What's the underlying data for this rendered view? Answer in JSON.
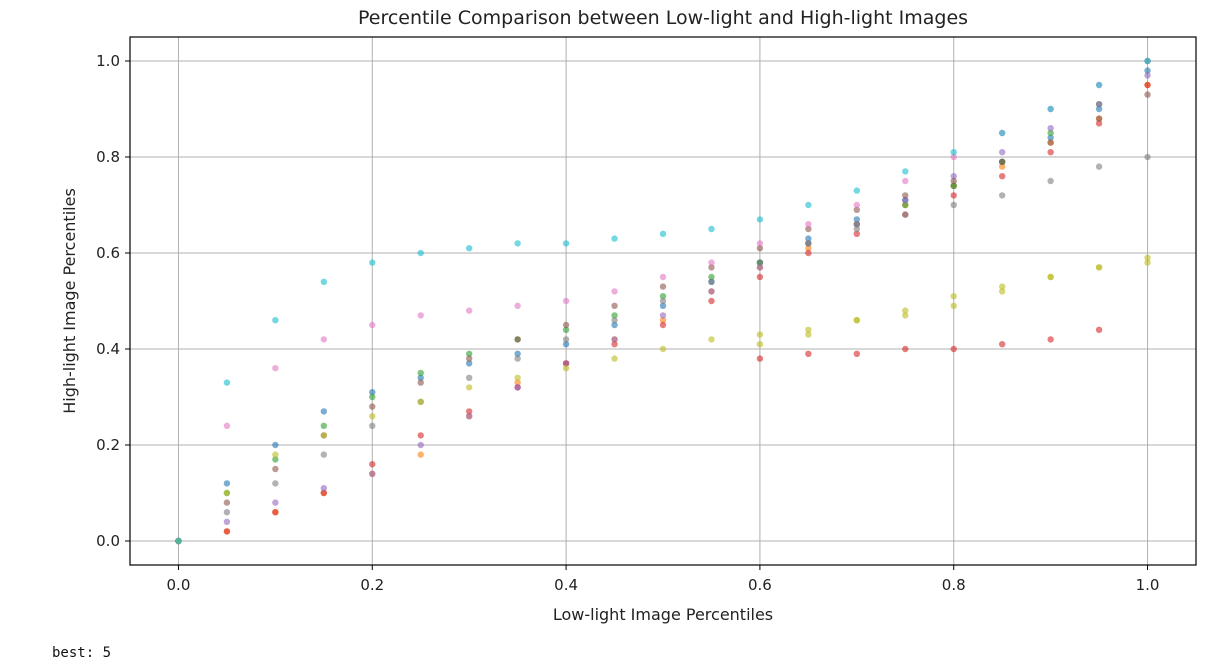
{
  "output": {
    "console_line": "best: 5"
  },
  "chart_data": {
    "type": "scatter",
    "title": "Percentile Comparison between Low-light and High-light Images",
    "xlabel": "Low-light Image Percentiles",
    "ylabel": "High-light Image Percentiles",
    "xlim": [
      -0.05,
      1.05
    ],
    "ylim": [
      -0.05,
      1.05
    ],
    "x_ticks": [
      0.0,
      0.2,
      0.4,
      0.6,
      0.8,
      1.0
    ],
    "x_tick_labels": [
      "0.0",
      "0.2",
      "0.4",
      "0.6",
      "0.8",
      "1.0"
    ],
    "y_ticks": [
      0.0,
      0.2,
      0.4,
      0.6,
      0.8,
      1.0
    ],
    "y_tick_labels": [
      "0.0",
      "0.2",
      "0.4",
      "0.6",
      "0.8",
      "1.0"
    ],
    "grid": true,
    "marker_opacity": 0.6,
    "palette": [
      "#1f77b4",
      "#ff7f0e",
      "#2ca02c",
      "#d62728",
      "#9467bd",
      "#8c564b",
      "#e377c2",
      "#7f7f7f",
      "#bcbd22",
      "#17becf"
    ],
    "series": [
      {
        "color": "#1f77b4",
        "x": [
          0.0,
          0.05,
          0.1,
          0.15,
          0.2,
          0.25,
          0.3,
          0.35,
          0.4,
          0.45,
          0.5,
          0.55,
          0.6,
          0.65,
          0.7,
          0.75,
          0.8,
          0.85,
          0.9,
          0.95,
          1.0
        ],
        "y": [
          0.0,
          0.12,
          0.2,
          0.27,
          0.31,
          0.34,
          0.37,
          0.39,
          0.41,
          0.45,
          0.49,
          0.54,
          0.58,
          0.63,
          0.67,
          0.71,
          0.74,
          0.79,
          0.84,
          0.9,
          0.98
        ]
      },
      {
        "color": "#ff7f0e",
        "x": [
          0.0,
          0.05,
          0.1,
          0.15,
          0.2,
          0.25,
          0.3,
          0.35,
          0.4,
          0.45,
          0.5,
          0.55,
          0.6,
          0.65,
          0.7,
          0.75,
          0.8,
          0.85,
          0.9,
          0.95,
          1.0
        ],
        "y": [
          0.0,
          0.02,
          0.06,
          0.1,
          0.14,
          0.18,
          0.26,
          0.33,
          0.37,
          0.42,
          0.46,
          0.52,
          0.57,
          0.61,
          0.66,
          0.7,
          0.74,
          0.78,
          0.83,
          0.88,
          0.95
        ]
      },
      {
        "color": "#2ca02c",
        "x": [
          0.0,
          0.05,
          0.1,
          0.15,
          0.2,
          0.25,
          0.3,
          0.35,
          0.4,
          0.45,
          0.5,
          0.55,
          0.6,
          0.65,
          0.7,
          0.75,
          0.8,
          0.85,
          0.9,
          0.95,
          1.0
        ],
        "y": [
          0.0,
          0.1,
          0.17,
          0.24,
          0.3,
          0.35,
          0.39,
          0.42,
          0.44,
          0.47,
          0.51,
          0.55,
          0.58,
          0.62,
          0.66,
          0.7,
          0.74,
          0.79,
          0.85,
          0.91,
          1.0
        ]
      },
      {
        "color": "#d62728",
        "x": [
          0.0,
          0.05,
          0.1,
          0.15,
          0.2,
          0.25,
          0.3,
          0.35,
          0.4,
          0.45,
          0.5,
          0.55,
          0.6,
          0.65,
          0.7,
          0.75,
          0.8,
          0.85,
          0.9,
          0.95,
          1.0
        ],
        "y": [
          0.0,
          0.02,
          0.06,
          0.1,
          0.16,
          0.22,
          0.27,
          0.32,
          0.37,
          0.41,
          0.45,
          0.5,
          0.55,
          0.6,
          0.64,
          0.68,
          0.72,
          0.76,
          0.81,
          0.87,
          0.95
        ]
      },
      {
        "color": "#9467bd",
        "x": [
          0.0,
          0.05,
          0.1,
          0.15,
          0.2,
          0.25,
          0.3,
          0.35,
          0.4,
          0.45,
          0.5,
          0.55,
          0.6,
          0.65,
          0.7,
          0.75,
          0.8,
          0.85,
          0.9,
          0.95,
          1.0
        ],
        "y": [
          0.0,
          0.04,
          0.08,
          0.11,
          0.14,
          0.2,
          0.26,
          0.32,
          0.37,
          0.42,
          0.47,
          0.52,
          0.57,
          0.62,
          0.66,
          0.71,
          0.76,
          0.81,
          0.86,
          0.91,
          0.97
        ]
      },
      {
        "color": "#8c564b",
        "x": [
          0.0,
          0.05,
          0.1,
          0.15,
          0.2,
          0.25,
          0.3,
          0.35,
          0.4,
          0.45,
          0.5,
          0.55,
          0.6,
          0.65,
          0.7,
          0.75,
          0.8,
          0.85,
          0.9,
          0.95,
          1.0
        ],
        "y": [
          0.0,
          0.08,
          0.15,
          0.22,
          0.28,
          0.33,
          0.38,
          0.42,
          0.45,
          0.49,
          0.53,
          0.57,
          0.61,
          0.65,
          0.69,
          0.72,
          0.75,
          0.79,
          0.83,
          0.88,
          0.93
        ]
      },
      {
        "color": "#e377c2",
        "x": [
          0.0,
          0.05,
          0.1,
          0.15,
          0.2,
          0.25,
          0.3,
          0.35,
          0.4,
          0.45,
          0.5,
          0.55,
          0.6,
          0.65,
          0.7,
          0.75,
          0.8,
          0.85,
          0.9,
          0.95,
          1.0
        ],
        "y": [
          0.0,
          0.24,
          0.36,
          0.42,
          0.45,
          0.47,
          0.48,
          0.49,
          0.5,
          0.52,
          0.55,
          0.58,
          0.62,
          0.66,
          0.7,
          0.75,
          0.8,
          0.85,
          0.9,
          0.95,
          1.0
        ]
      },
      {
        "color": "#7f7f7f",
        "x": [
          0.0,
          0.05,
          0.1,
          0.15,
          0.2,
          0.25,
          0.3,
          0.35,
          0.4,
          0.45,
          0.5,
          0.55,
          0.6,
          0.65,
          0.7,
          0.75,
          0.8,
          0.85,
          0.9,
          0.95,
          1.0
        ],
        "y": [
          0.0,
          0.06,
          0.12,
          0.18,
          0.24,
          0.29,
          0.34,
          0.38,
          0.42,
          0.46,
          0.5,
          0.54,
          0.58,
          0.62,
          0.65,
          0.68,
          0.7,
          0.72,
          0.75,
          0.78,
          0.8
        ]
      },
      {
        "color": "#bcbd22",
        "x": [
          0.0,
          0.05,
          0.1,
          0.15,
          0.2,
          0.25,
          0.3,
          0.35,
          0.4,
          0.45,
          0.5,
          0.55,
          0.6,
          0.65,
          0.7,
          0.75,
          0.8,
          0.85,
          0.9,
          0.95,
          1.0
        ],
        "y": [
          0.0,
          0.1,
          0.18,
          0.22,
          0.26,
          0.29,
          0.32,
          0.34,
          0.36,
          0.38,
          0.4,
          0.42,
          0.43,
          0.44,
          0.46,
          0.47,
          0.49,
          0.52,
          0.55,
          0.57,
          0.59
        ]
      },
      {
        "color": "#17becf",
        "x": [
          0.0,
          0.05,
          0.1,
          0.15,
          0.2,
          0.25,
          0.3,
          0.35,
          0.4,
          0.45,
          0.5,
          0.55,
          0.6,
          0.65,
          0.7,
          0.75,
          0.8,
          0.85,
          0.9,
          0.95,
          1.0
        ],
        "y": [
          0.0,
          0.33,
          0.46,
          0.54,
          0.58,
          0.6,
          0.61,
          0.62,
          0.62,
          0.63,
          0.64,
          0.65,
          0.67,
          0.7,
          0.73,
          0.77,
          0.81,
          0.85,
          0.9,
          0.95,
          1.0
        ]
      },
      {
        "color": "#d62728",
        "x": [
          0.6,
          0.65,
          0.7,
          0.75,
          0.8,
          0.85,
          0.9,
          0.95
        ],
        "y": [
          0.38,
          0.39,
          0.39,
          0.4,
          0.4,
          0.41,
          0.42,
          0.44
        ]
      },
      {
        "color": "#bcbd22",
        "x": [
          0.6,
          0.65,
          0.7,
          0.75,
          0.8,
          0.85,
          0.9,
          0.95,
          1.0
        ],
        "y": [
          0.41,
          0.43,
          0.46,
          0.48,
          0.51,
          0.53,
          0.55,
          0.57,
          0.58
        ]
      }
    ]
  }
}
